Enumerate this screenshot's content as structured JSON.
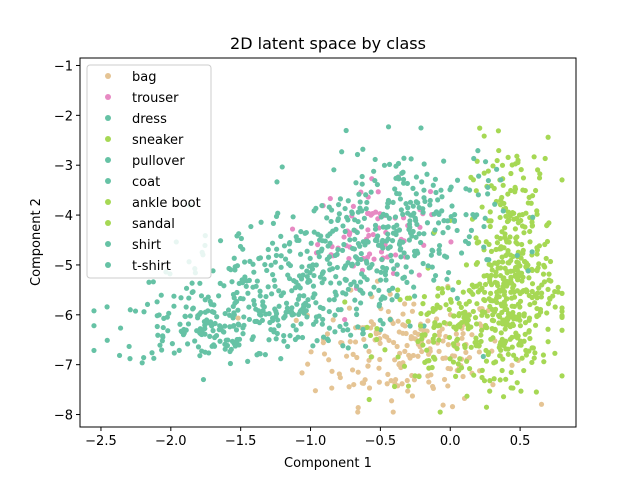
{
  "chart_data": {
    "type": "scatter",
    "title": "2D latent space by class",
    "xlabel": "Component 1",
    "ylabel": "Component 2",
    "xlim": [
      -2.65,
      0.9
    ],
    "ylim": [
      -8.25,
      -0.85
    ],
    "xticks": [
      -2.5,
      -2.0,
      -1.5,
      -1.0,
      -0.5,
      0.0,
      0.5
    ],
    "xtick_labels": [
      "−2.5",
      "−2.0",
      "−1.5",
      "−1.0",
      "−0.5",
      "0.0",
      "0.5"
    ],
    "yticks": [
      -8,
      -7,
      -6,
      -5,
      -4,
      -3,
      -2,
      -1
    ],
    "ytick_labels": [
      "−8",
      "−7",
      "−6",
      "−5",
      "−4",
      "−3",
      "−2",
      "−1"
    ],
    "grid": false,
    "legend_position": "top-left",
    "series": [
      {
        "name": "bag",
        "color": "#e5c494",
        "n": 200,
        "center": [
          -0.3,
          -6.7
        ],
        "spread": [
          0.35,
          0.55
        ]
      },
      {
        "name": "trouser",
        "color": "#e78ac3",
        "n": 70,
        "center": [
          -0.55,
          -4.4
        ],
        "spread": [
          0.2,
          0.5
        ]
      },
      {
        "name": "dress",
        "color": "#66c2a5",
        "n": 150,
        "center": [
          -1.0,
          -5.3
        ],
        "spread": [
          0.55,
          0.6
        ]
      },
      {
        "name": "sneaker",
        "color": "#a6d854",
        "n": 180,
        "center": [
          0.1,
          -6.3
        ],
        "spread": [
          0.3,
          0.55
        ]
      },
      {
        "name": "pullover",
        "color": "#66c2a5",
        "n": 150,
        "center": [
          -1.7,
          -6.3
        ],
        "spread": [
          0.35,
          0.35
        ]
      },
      {
        "name": "coat",
        "color": "#66c2a5",
        "n": 150,
        "center": [
          -1.2,
          -5.8
        ],
        "spread": [
          0.4,
          0.45
        ]
      },
      {
        "name": "ankle boot",
        "color": "#a6d854",
        "n": 200,
        "center": [
          0.45,
          -4.5
        ],
        "spread": [
          0.15,
          1.0
        ]
      },
      {
        "name": "sandal",
        "color": "#a6d854",
        "n": 200,
        "center": [
          0.45,
          -5.8
        ],
        "spread": [
          0.15,
          0.7
        ]
      },
      {
        "name": "shirt",
        "color": "#66c2a5",
        "n": 150,
        "center": [
          -0.3,
          -3.8
        ],
        "spread": [
          0.3,
          0.6
        ]
      },
      {
        "name": "t-shirt",
        "color": "#66c2a5",
        "n": 150,
        "center": [
          -0.7,
          -4.6
        ],
        "spread": [
          0.45,
          0.5
        ]
      }
    ]
  }
}
